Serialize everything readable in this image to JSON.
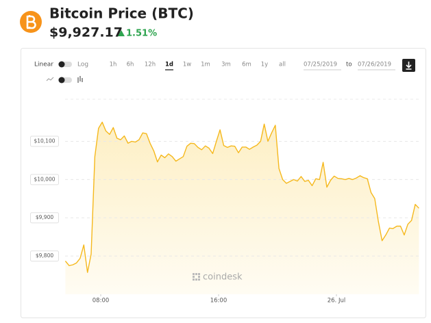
{
  "header": {
    "title": "Bitcoin Price (BTC)",
    "price": "$9,927.17",
    "change": "1.51%"
  },
  "controls": {
    "scale_options": [
      "Linear",
      "Log"
    ],
    "ranges": [
      "1h",
      "6h",
      "12h",
      "1d",
      "1w",
      "1m",
      "3m",
      "6m",
      "1y",
      "all"
    ],
    "active_range": "1d",
    "date_from": "07/25/2019",
    "date_separator": "to",
    "date_to": "07/26/2019"
  },
  "watermark": "coindesk",
  "chart_data": {
    "type": "line",
    "x": [
      5.6,
      5.85,
      6.1,
      6.35,
      6.6,
      6.85,
      7.1,
      7.35,
      7.6,
      7.85,
      8.1,
      8.35,
      8.6,
      8.85,
      9.1,
      9.35,
      9.6,
      9.85,
      10.1,
      10.35,
      10.6,
      10.85,
      11.1,
      11.35,
      11.6,
      11.85,
      12.1,
      12.35,
      12.6,
      12.85,
      13.1,
      13.35,
      13.6,
      13.85,
      14.1,
      14.35,
      14.6,
      14.85,
      15.1,
      15.35,
      15.6,
      15.85,
      16.1,
      16.35,
      16.6,
      16.85,
      17.1,
      17.35,
      17.6,
      17.85,
      18.1,
      18.35,
      18.6,
      18.85,
      19.1,
      19.35,
      19.6,
      19.85,
      20.1,
      20.35,
      20.6,
      20.85,
      21.1,
      21.35,
      21.6,
      21.85,
      22.1,
      22.35,
      22.6,
      22.85,
      23.1,
      23.35,
      23.6,
      23.85,
      24.1,
      24.35,
      24.6,
      24.85,
      25.1,
      25.35,
      25.6,
      25.85,
      26.1,
      26.35,
      26.6,
      26.85,
      27.1,
      27.35,
      27.6,
      27.85,
      28.1,
      28.35,
      28.6,
      28.85,
      29.1,
      29.35,
      29.6
    ],
    "series": [
      {
        "color": "#f5b81c",
        "values": [
          9787,
          9775,
          9777,
          9782,
          9794,
          9829,
          9757,
          9805,
          10060,
          10134,
          10150,
          10127,
          10118,
          10136,
          10108,
          10104,
          10114,
          10095,
          10100,
          10098,
          10104,
          10122,
          10120,
          10095,
          10075,
          10046,
          10064,
          10057,
          10067,
          10060,
          10048,
          10054,
          10060,
          10087,
          10095,
          10094,
          10084,
          10078,
          10088,
          10082,
          10068,
          10100,
          10130,
          10089,
          10084,
          10088,
          10087,
          10070,
          10085,
          10085,
          10079,
          10085,
          10090,
          10100,
          10145,
          10100,
          10122,
          10142,
          10029,
          10000,
          9990,
          9995,
          10000,
          9996,
          10008,
          9995,
          9998,
          9984,
          10002,
          10000,
          10045,
          9980,
          9998,
          10009,
          10003,
          10002,
          10000,
          10003,
          10000,
          10004,
          10010,
          10005,
          10002,
          9966,
          9950,
          9890,
          9840,
          9855,
          9873,
          9872,
          9878,
          9878,
          9855,
          9883,
          9893,
          9935,
          9925
        ]
      }
    ],
    "xlim": [
      5.58,
      29.63
    ],
    "xticks": [
      {
        "value": 8,
        "label": "08:00"
      },
      {
        "value": 16,
        "label": "16:00"
      },
      {
        "value": 24,
        "label": "26. Jul"
      }
    ],
    "ylim": [
      9700,
      10210
    ],
    "yticks": [
      {
        "value": 9800,
        "label": "$9,800"
      },
      {
        "value": 9900,
        "label": "$9,900"
      },
      {
        "value": 10000,
        "label": "$10,000"
      },
      {
        "value": 10100,
        "label": "$10,100"
      }
    ],
    "grid": true
  }
}
